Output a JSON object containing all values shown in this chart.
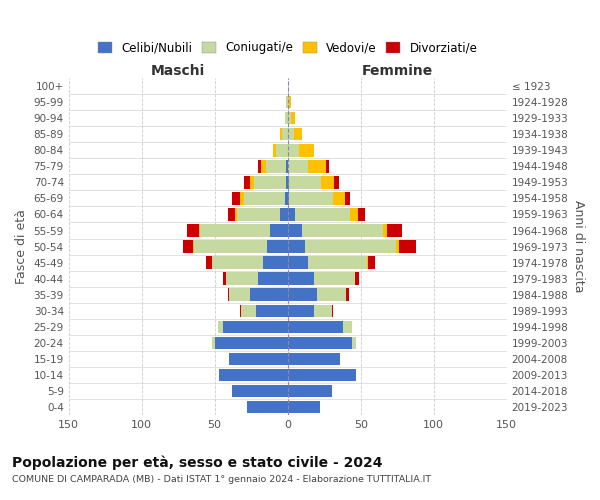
{
  "age_groups": [
    "100+",
    "95-99",
    "90-94",
    "85-89",
    "80-84",
    "75-79",
    "70-74",
    "65-69",
    "60-64",
    "55-59",
    "50-54",
    "45-49",
    "40-44",
    "35-39",
    "30-34",
    "25-29",
    "20-24",
    "15-19",
    "10-14",
    "5-9",
    "0-4"
  ],
  "birth_years": [
    "≤ 1923",
    "1924-1928",
    "1929-1933",
    "1934-1938",
    "1939-1943",
    "1944-1948",
    "1949-1953",
    "1954-1958",
    "1959-1963",
    "1964-1968",
    "1969-1973",
    "1974-1978",
    "1979-1983",
    "1984-1988",
    "1989-1993",
    "1994-1998",
    "1999-2003",
    "2004-2008",
    "2009-2013",
    "2014-2018",
    "2019-2023"
  ],
  "maschi": {
    "celibi": [
      0,
      0,
      0,
      0,
      0,
      1,
      1,
      2,
      5,
      12,
      14,
      17,
      20,
      26,
      22,
      44,
      50,
      40,
      47,
      38,
      28
    ],
    "coniugati": [
      0,
      1,
      2,
      4,
      8,
      14,
      22,
      28,
      30,
      48,
      50,
      35,
      22,
      14,
      10,
      4,
      2,
      0,
      0,
      0,
      0
    ],
    "vedovi": [
      0,
      0,
      0,
      1,
      2,
      3,
      3,
      3,
      1,
      1,
      1,
      0,
      0,
      0,
      0,
      0,
      0,
      0,
      0,
      0,
      0
    ],
    "divorziati": [
      0,
      0,
      0,
      0,
      0,
      2,
      4,
      5,
      5,
      8,
      7,
      4,
      2,
      1,
      1,
      0,
      0,
      0,
      0,
      0,
      0
    ]
  },
  "femmine": {
    "nubili": [
      0,
      0,
      0,
      0,
      0,
      0,
      1,
      1,
      5,
      10,
      12,
      14,
      18,
      20,
      18,
      38,
      44,
      36,
      47,
      30,
      22
    ],
    "coniugate": [
      0,
      1,
      2,
      4,
      8,
      14,
      22,
      30,
      38,
      55,
      62,
      40,
      28,
      20,
      12,
      6,
      3,
      0,
      0,
      0,
      0
    ],
    "vedove": [
      0,
      1,
      3,
      6,
      10,
      12,
      9,
      8,
      5,
      3,
      2,
      1,
      0,
      0,
      0,
      0,
      0,
      0,
      0,
      0,
      0
    ],
    "divorziate": [
      0,
      0,
      0,
      0,
      0,
      2,
      3,
      4,
      5,
      10,
      12,
      5,
      3,
      2,
      1,
      0,
      0,
      0,
      0,
      0,
      0
    ]
  },
  "colors": {
    "celibi": "#4472c4",
    "coniugati": "#c5d9a0",
    "vedovi": "#ffc000",
    "divorziati": "#cc0000"
  },
  "xlim": 150,
  "title": "Popolazione per età, sesso e stato civile - 2024",
  "subtitle": "COMUNE DI CAMPARADA (MB) - Dati ISTAT 1° gennaio 2024 - Elaborazione TUTTITALIA.IT",
  "xlabel_left": "Maschi",
  "xlabel_right": "Femmine",
  "ylabel_left": "Fasce di età",
  "ylabel_right": "Anni di nascita",
  "legend_labels": [
    "Celibi/Nubili",
    "Coniugati/e",
    "Vedovi/e",
    "Divorziati/e"
  ],
  "background_color": "#ffffff",
  "grid_color": "#cccccc"
}
